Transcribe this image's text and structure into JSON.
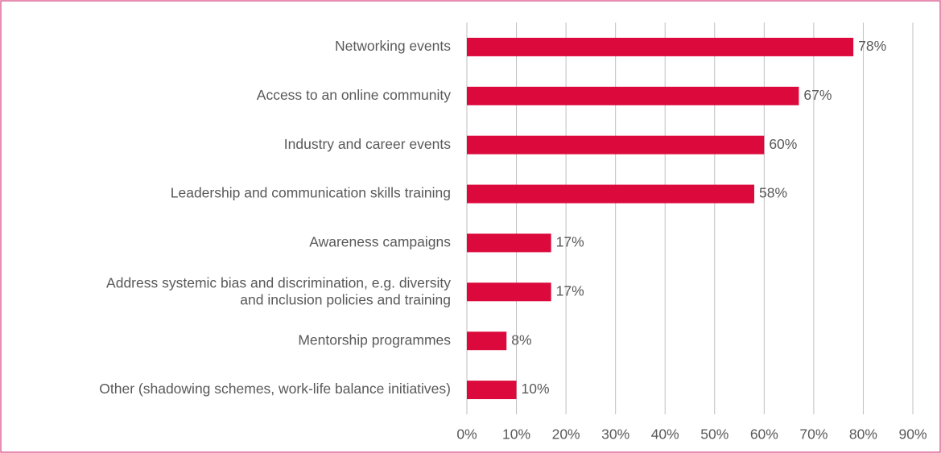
{
  "chart_data": {
    "type": "bar",
    "orientation": "horizontal",
    "categories": [
      "Networking events",
      "Access to an online community",
      "Industry and career events",
      "Leadership and communication skills training",
      "Awareness campaigns",
      "Address systemic bias and discrimination, e.g. diversity\nand inclusion policies and training",
      "Mentorship programmes",
      "Other (shadowing schemes, work-life balance initiatives)"
    ],
    "values": [
      78,
      67,
      60,
      58,
      17,
      17,
      8,
      10
    ],
    "value_labels": [
      "78%",
      "67%",
      "60%",
      "58%",
      "17%",
      "17%",
      "8%",
      "10%"
    ],
    "color": "#dc0a3c",
    "xlim": [
      0,
      90
    ],
    "xticks": [
      {
        "value": 0,
        "label": "0%"
      },
      {
        "value": 10,
        "label": "10%"
      },
      {
        "value": 20,
        "label": "20%"
      },
      {
        "value": 30,
        "label": "30%"
      },
      {
        "value": 40,
        "label": "40%"
      },
      {
        "value": 50,
        "label": "50%"
      },
      {
        "value": 60,
        "label": "60%"
      },
      {
        "value": 70,
        "label": "70%"
      },
      {
        "value": 80,
        "label": "80%"
      },
      {
        "value": 90,
        "label": "90%"
      }
    ],
    "grid": true
  }
}
